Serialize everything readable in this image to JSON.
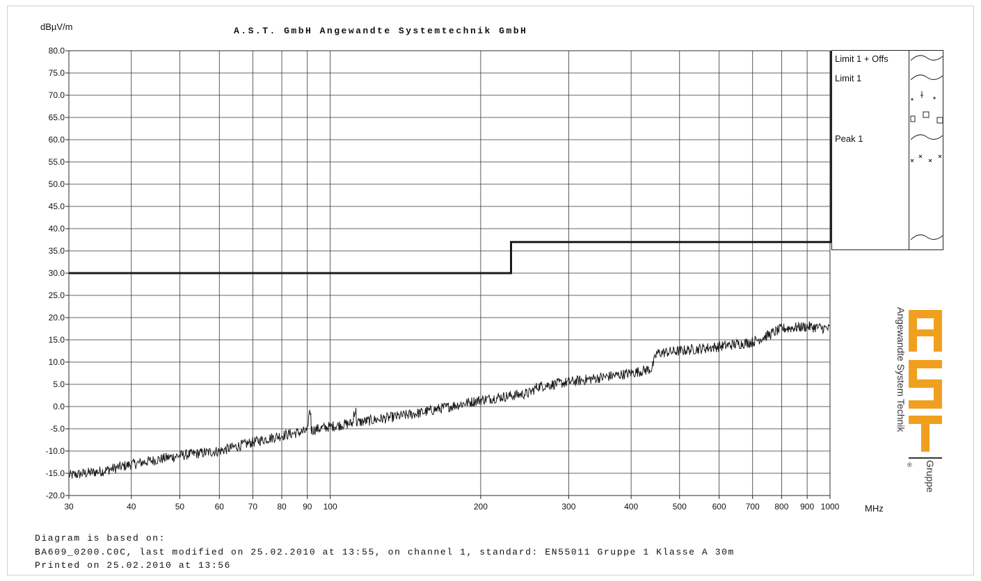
{
  "header": {
    "y_unit": "dBµV/m",
    "title": "A.S.T. GmbH Angewandte Systemtechnik GmbH",
    "x_unit": "MHz"
  },
  "legend": {
    "items": [
      {
        "label": "Limit 1 + Offs",
        "symbol": "wave"
      },
      {
        "label": "Limit 1",
        "symbol": "wave-plus-marks"
      },
      {
        "label": "Peak 1",
        "symbol": "wave-cross-marks"
      }
    ]
  },
  "logo": {
    "brand": "AST",
    "tagline": "Angewandte System Technik",
    "suffix": "Gruppe",
    "accent_color": "#f0a01e"
  },
  "footer": {
    "line1": "Diagram is based on:",
    "line2": "BA609_0200.C0C, last modified on 25.02.2010 at 13:55, on channel 1, standard: EN55011 Gruppe 1 Klasse A 30m",
    "line3": "Printed on 25.02.2010 at 13:56"
  },
  "chart_data": {
    "type": "line",
    "title": "A.S.T. GmbH Angewandte Systemtechnik GmbH",
    "xlabel": "MHz",
    "ylabel": "dBµV/m",
    "x_scale": "log",
    "xlim": [
      30,
      1000
    ],
    "ylim": [
      -20,
      80
    ],
    "x_ticks": [
      30,
      40,
      50,
      60,
      70,
      80,
      90,
      100,
      200,
      300,
      400,
      500,
      600,
      700,
      800,
      900,
      1000
    ],
    "x_tick_labels": [
      "30",
      "40",
      "50",
      "60",
      "70",
      "80",
      "90",
      "100",
      "200",
      "300",
      "400",
      "500",
      "600",
      "700",
      "800",
      "900",
      "1000"
    ],
    "y_ticks": [
      80,
      75,
      70,
      65,
      60,
      55,
      50,
      45,
      40,
      35,
      30,
      25,
      20,
      15,
      10,
      5,
      0,
      -5,
      -10,
      -15,
      -20
    ],
    "y_tick_labels": [
      "80.0",
      "75.0",
      "70.0",
      "65.0",
      "60.0",
      "55.0",
      "50.0",
      "45.0",
      "40.0",
      "35.0",
      "30.0",
      "25.0",
      "20.0",
      "15.0",
      "10.0",
      "5.0",
      "0.0",
      "-5.0",
      "-10.0",
      "-15.0",
      "-20.0"
    ],
    "grid": true,
    "legend_position": "right",
    "series": [
      {
        "name": "Limit 1",
        "color": "#1a1a1a",
        "style": "step",
        "x": [
          30,
          230,
          230,
          1000
        ],
        "y": [
          30,
          30,
          37,
          37
        ]
      },
      {
        "name": "Peak 1",
        "color": "#1a1a1a",
        "style": "noisy",
        "x": [
          30,
          35,
          40,
          50,
          60,
          70,
          80,
          90,
          100,
          150,
          200,
          250,
          260,
          300,
          400,
          440,
          450,
          500,
          600,
          700,
          750,
          800,
          900,
          1000
        ],
        "y": [
          -15.5,
          -14.5,
          -13,
          -11,
          -10,
          -8,
          -6.5,
          -5.5,
          -4.5,
          -1.5,
          1.5,
          3,
          4.5,
          5.5,
          7.5,
          8.5,
          12,
          12.5,
          13.5,
          14.5,
          16,
          17.5,
          18,
          17.5
        ]
      }
    ]
  }
}
